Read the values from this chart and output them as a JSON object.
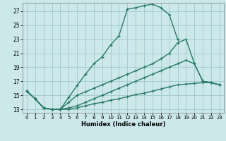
{
  "xlabel": "Humidex (Indice chaleur)",
  "bg_color": "#cce8ea",
  "grid_color": "#a0c8cc",
  "line_color": "#2a7a6a",
  "xlim": [
    -0.5,
    23.5
  ],
  "ylim": [
    12.5,
    28.2
  ],
  "xticks": [
    0,
    1,
    2,
    3,
    4,
    5,
    6,
    7,
    8,
    9,
    10,
    11,
    12,
    13,
    14,
    15,
    16,
    17,
    18,
    19,
    20,
    21,
    22,
    23
  ],
  "yticks": [
    13,
    15,
    17,
    19,
    21,
    23,
    25,
    27
  ],
  "line1_y": [
    15.6,
    14.5,
    13.2,
    13.0,
    13.0,
    14.7,
    16.4,
    18.0,
    19.5,
    20.5,
    22.2,
    23.5,
    27.3,
    27.5,
    27.8,
    28.0,
    27.5,
    26.5,
    23.0,
    null,
    null,
    null,
    null,
    null
  ],
  "line2_y": [
    15.6,
    14.5,
    13.2,
    13.0,
    13.0,
    14.0,
    15.0,
    15.5,
    16.0,
    16.5,
    17.0,
    17.5,
    18.0,
    18.5,
    19.0,
    19.5,
    20.2,
    21.0,
    22.5,
    23.0,
    19.5,
    17.0,
    16.8,
    16.5
  ],
  "line3_y": [
    15.6,
    14.5,
    13.2,
    13.0,
    13.0,
    13.2,
    13.5,
    14.0,
    14.5,
    15.0,
    15.5,
    16.0,
    16.5,
    17.0,
    17.5,
    18.0,
    18.5,
    19.0,
    19.5,
    20.0,
    19.5,
    17.0,
    16.8,
    16.5
  ],
  "line4_y": [
    15.6,
    14.5,
    13.2,
    13.0,
    13.0,
    13.0,
    13.2,
    13.5,
    13.8,
    14.0,
    14.3,
    14.5,
    14.8,
    15.1,
    15.3,
    15.6,
    15.9,
    16.2,
    16.5,
    16.6,
    16.7,
    16.8,
    16.8,
    16.5
  ]
}
